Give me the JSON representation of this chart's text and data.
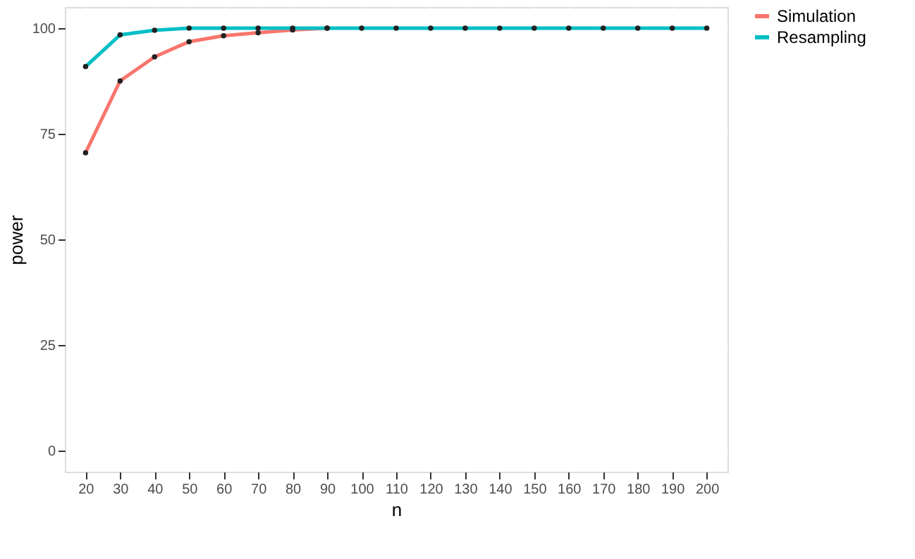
{
  "chart_data": {
    "type": "line",
    "xlabel": "n",
    "ylabel": "power",
    "categories": [
      "20",
      "30",
      "40",
      "50",
      "60",
      "70",
      "80",
      "90",
      "100",
      "110",
      "120",
      "130",
      "140",
      "150",
      "160",
      "170",
      "180",
      "190",
      "200"
    ],
    "series": [
      {
        "name": "Simulation",
        "color": "#f8766d",
        "values": [
          70.5,
          87.5,
          93.2,
          96.8,
          98.2,
          98.9,
          99.6,
          100,
          null,
          null,
          null,
          null,
          null,
          null,
          null,
          null,
          null,
          null,
          null
        ]
      },
      {
        "name": "Resampling",
        "color": "#00bfc4",
        "values": [
          90.9,
          98.4,
          99.5,
          100,
          100,
          100,
          100,
          100,
          100,
          100,
          100,
          100,
          100,
          100,
          100,
          100,
          100,
          100,
          100
        ]
      }
    ],
    "ylim": [
      -5,
      105
    ],
    "yticks": [
      0,
      25,
      50,
      75,
      100
    ],
    "grid": true,
    "legend": "right",
    "marker": "circle",
    "line_style": "solid"
  }
}
